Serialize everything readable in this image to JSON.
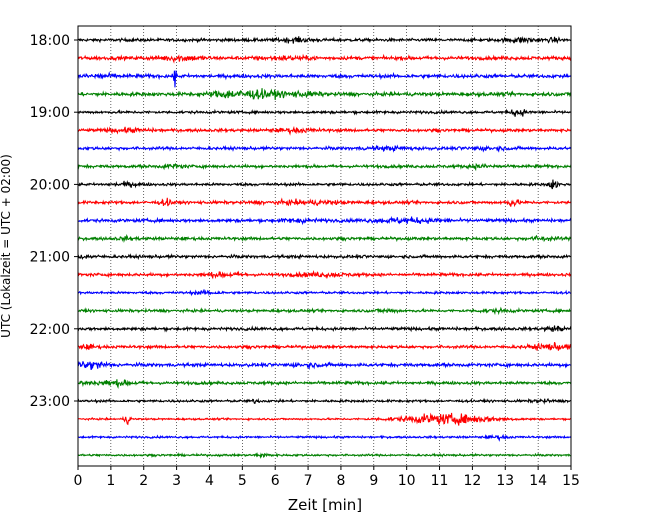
{
  "chart_data": {
    "type": "line",
    "title": "",
    "xlabel": "Zeit  [min]",
    "ylabel": "UTC (Lokalzeit = UTC + 02:00)",
    "xlim": [
      0,
      15
    ],
    "x_ticks": [
      0,
      1,
      2,
      3,
      4,
      5,
      6,
      7,
      8,
      9,
      10,
      11,
      12,
      13,
      14,
      15
    ],
    "grid": "vertical-dotted",
    "row_minutes": 15,
    "y_tick_labels": [
      "18:00",
      "19:00",
      "20:00",
      "21:00",
      "22:00",
      "23:00"
    ],
    "row_colors": [
      "#000000",
      "#ff0000",
      "#0000ff",
      "#008000"
    ],
    "rows": [
      {
        "start": "18:00",
        "color": "#000000",
        "amp": 0.1,
        "events": [
          {
            "t": 6.6,
            "w": 0.5,
            "a": 0.12
          },
          {
            "t": 13.5,
            "w": 0.5,
            "a": 0.14
          },
          {
            "t": 14.5,
            "w": 0.2,
            "a": 0.1
          }
        ]
      },
      {
        "start": "18:15",
        "color": "#ff0000",
        "amp": 0.12,
        "events": [
          {
            "t": 3.1,
            "w": 0.6,
            "a": 0.16
          },
          {
            "t": 6.3,
            "w": 0.8,
            "a": 0.08
          }
        ]
      },
      {
        "start": "18:30",
        "color": "#0000ff",
        "amp": 0.12,
        "events": [
          {
            "t": 2.95,
            "w": 0.03,
            "a": 1.1
          },
          {
            "t": 0.6,
            "w": 0.5,
            "a": 0.1
          }
        ]
      },
      {
        "start": "18:45",
        "color": "#008000",
        "amp": 0.12,
        "events": [
          {
            "t": 4.5,
            "w": 0.5,
            "a": 0.2
          },
          {
            "t": 5.5,
            "w": 0.7,
            "a": 0.24
          },
          {
            "t": 6.8,
            "w": 0.6,
            "a": 0.12
          }
        ]
      },
      {
        "start": "19:00",
        "color": "#000000",
        "amp": 0.09,
        "events": [
          {
            "t": 13.4,
            "w": 0.2,
            "a": 0.28
          }
        ]
      },
      {
        "start": "19:15",
        "color": "#ff0000",
        "amp": 0.1,
        "events": [
          {
            "t": 1.5,
            "w": 0.6,
            "a": 0.1
          },
          {
            "t": 6.6,
            "w": 0.6,
            "a": 0.1
          }
        ]
      },
      {
        "start": "19:30",
        "color": "#0000ff",
        "amp": 0.1,
        "events": [
          {
            "t": 9.5,
            "w": 0.8,
            "a": 0.08
          },
          {
            "t": 12.5,
            "w": 0.6,
            "a": 0.08
          }
        ]
      },
      {
        "start": "19:45",
        "color": "#008000",
        "amp": 0.1,
        "events": [
          {
            "t": 2.9,
            "w": 0.3,
            "a": 0.12
          },
          {
            "t": 12.3,
            "w": 0.4,
            "a": 0.1
          }
        ]
      },
      {
        "start": "20:00",
        "color": "#000000",
        "amp": 0.09,
        "events": [
          {
            "t": 14.45,
            "w": 0.15,
            "a": 0.3
          },
          {
            "t": 1.5,
            "w": 0.4,
            "a": 0.1
          }
        ]
      },
      {
        "start": "20:15",
        "color": "#ff0000",
        "amp": 0.1,
        "events": [
          {
            "t": 2.7,
            "w": 0.2,
            "a": 0.18
          },
          {
            "t": 7.0,
            "w": 1.2,
            "a": 0.1
          },
          {
            "t": 13.2,
            "w": 0.2,
            "a": 0.22
          }
        ]
      },
      {
        "start": "20:30",
        "color": "#0000ff",
        "amp": 0.11,
        "events": [
          {
            "t": 10.0,
            "w": 1.0,
            "a": 0.14
          },
          {
            "t": 6.7,
            "w": 0.6,
            "a": 0.08
          }
        ]
      },
      {
        "start": "20:45",
        "color": "#008000",
        "amp": 0.1,
        "events": [
          {
            "t": 14.1,
            "w": 0.4,
            "a": 0.1
          },
          {
            "t": 1.5,
            "w": 0.3,
            "a": 0.08
          }
        ]
      },
      {
        "start": "21:00",
        "color": "#000000",
        "amp": 0.1,
        "events": [
          {
            "t": 0.2,
            "w": 0.3,
            "a": 0.1
          }
        ]
      },
      {
        "start": "21:15",
        "color": "#ff0000",
        "amp": 0.1,
        "events": [
          {
            "t": 4.4,
            "w": 0.6,
            "a": 0.1
          },
          {
            "t": 7.4,
            "w": 0.8,
            "a": 0.1
          }
        ]
      },
      {
        "start": "21:30",
        "color": "#0000ff",
        "amp": 0.08,
        "events": [
          {
            "t": 3.9,
            "w": 0.4,
            "a": 0.1
          }
        ]
      },
      {
        "start": "21:45",
        "color": "#008000",
        "amp": 0.09,
        "events": [
          {
            "t": 9.4,
            "w": 0.3,
            "a": 0.1
          },
          {
            "t": 12.7,
            "w": 0.5,
            "a": 0.08
          }
        ]
      },
      {
        "start": "22:00",
        "color": "#000000",
        "amp": 0.1,
        "events": [
          {
            "t": 14.5,
            "w": 0.3,
            "a": 0.14
          }
        ]
      },
      {
        "start": "22:15",
        "color": "#ff0000",
        "amp": 0.1,
        "events": [
          {
            "t": 0.3,
            "w": 0.2,
            "a": 0.12
          },
          {
            "t": 14.4,
            "w": 0.6,
            "a": 0.18
          }
        ]
      },
      {
        "start": "22:30",
        "color": "#0000ff",
        "amp": 0.11,
        "events": [
          {
            "t": 0.4,
            "w": 0.5,
            "a": 0.24
          },
          {
            "t": 7.0,
            "w": 0.5,
            "a": 0.08
          }
        ]
      },
      {
        "start": "22:45",
        "color": "#008000",
        "amp": 0.1,
        "events": [
          {
            "t": 1.1,
            "w": 0.6,
            "a": 0.14
          },
          {
            "t": 0.2,
            "w": 0.2,
            "a": 0.1
          }
        ]
      },
      {
        "start": "23:00",
        "color": "#000000",
        "amp": 0.08,
        "events": [
          {
            "t": 5.4,
            "w": 0.1,
            "a": 0.14
          },
          {
            "t": 14.1,
            "w": 0.3,
            "a": 0.08
          }
        ]
      },
      {
        "start": "23:15",
        "color": "#ff0000",
        "amp": 0.06,
        "events": [
          {
            "t": 1.5,
            "w": 0.1,
            "a": 0.3
          },
          {
            "t": 11.2,
            "w": 1.4,
            "a": 0.34
          }
        ]
      },
      {
        "start": "23:30",
        "color": "#0000ff",
        "amp": 0.07,
        "events": [
          {
            "t": 12.8,
            "w": 0.3,
            "a": 0.1
          }
        ]
      },
      {
        "start": "23:45",
        "color": "#008000",
        "amp": 0.07,
        "events": [
          {
            "t": 5.6,
            "w": 0.2,
            "a": 0.12
          }
        ]
      }
    ]
  }
}
